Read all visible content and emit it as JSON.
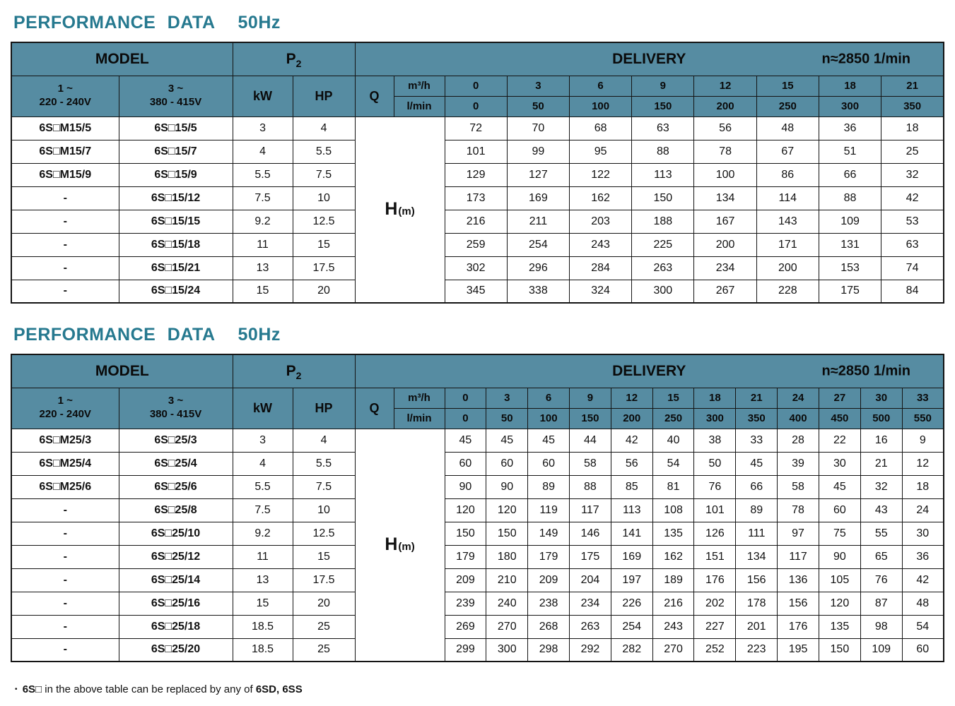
{
  "colors": {
    "title_accent": "#26798f",
    "header_bg": "#568ca2",
    "border": "#141414"
  },
  "tables": [
    {
      "title": "PERFORMANCE DATA",
      "freq": "50Hz",
      "header": {
        "model": "MODEL",
        "p2_base": "P",
        "p2_sub": "2",
        "delivery": "DELIVERY",
        "speed": "n≈2850 1/min",
        "phase1": [
          "1 ~",
          "220 - 240V"
        ],
        "phase3": [
          "3 ~",
          "380 - 415V"
        ],
        "kw": "kW",
        "hp": "HP",
        "q": "Q",
        "unit_m3h": "m³/h",
        "unit_lmin": "l/min",
        "flow_m3h": [
          0,
          3,
          6,
          9,
          12,
          15,
          18,
          21
        ],
        "flow_lmin": [
          0,
          50,
          100,
          150,
          200,
          250,
          300,
          350
        ],
        "head_base": "H",
        "head_unit": "(m)"
      },
      "rows": [
        {
          "model1": "6S□M15/5",
          "model3": "6S□15/5",
          "kw": 3,
          "hp": 4,
          "values": [
            72,
            70,
            68,
            63,
            56,
            48,
            36,
            18
          ]
        },
        {
          "model1": "6S□M15/7",
          "model3": "6S□15/7",
          "kw": 4,
          "hp": 5.5,
          "values": [
            101,
            99,
            95,
            88,
            78,
            67,
            51,
            25
          ]
        },
        {
          "model1": "6S□M15/9",
          "model3": "6S□15/9",
          "kw": 5.5,
          "hp": 7.5,
          "values": [
            129,
            127,
            122,
            113,
            100,
            86,
            66,
            32
          ]
        },
        {
          "model1": "-",
          "model3": "6S□15/12",
          "kw": 7.5,
          "hp": 10,
          "values": [
            173,
            169,
            162,
            150,
            134,
            114,
            88,
            42
          ]
        },
        {
          "model1": "-",
          "model3": "6S□15/15",
          "kw": 9.2,
          "hp": 12.5,
          "values": [
            216,
            211,
            203,
            188,
            167,
            143,
            109,
            53
          ]
        },
        {
          "model1": "-",
          "model3": "6S□15/18",
          "kw": 11,
          "hp": 15,
          "values": [
            259,
            254,
            243,
            225,
            200,
            171,
            131,
            63
          ]
        },
        {
          "model1": "-",
          "model3": "6S□15/21",
          "kw": 13,
          "hp": 17.5,
          "values": [
            302,
            296,
            284,
            263,
            234,
            200,
            153,
            74
          ]
        },
        {
          "model1": "-",
          "model3": "6S□15/24",
          "kw": 15,
          "hp": 20,
          "values": [
            345,
            338,
            324,
            300,
            267,
            228,
            175,
            84
          ]
        }
      ]
    },
    {
      "title": "PERFORMANCE DATA",
      "freq": "50Hz",
      "header": {
        "model": "MODEL",
        "p2_base": "P",
        "p2_sub": "2",
        "delivery": "DELIVERY",
        "speed": "n≈2850 1/min",
        "phase1": [
          "1 ~",
          "220 - 240V"
        ],
        "phase3": [
          "3 ~",
          "380 - 415V"
        ],
        "kw": "kW",
        "hp": "HP",
        "q": "Q",
        "unit_m3h": "m³/h",
        "unit_lmin": "l/min",
        "flow_m3h": [
          0,
          3,
          6,
          9,
          12,
          15,
          18,
          21,
          24,
          27,
          30,
          33
        ],
        "flow_lmin": [
          0,
          50,
          100,
          150,
          200,
          250,
          300,
          350,
          400,
          450,
          500,
          550
        ],
        "head_base": "H",
        "head_unit": "(m)"
      },
      "rows": [
        {
          "model1": "6S□M25/3",
          "model3": "6S□25/3",
          "kw": 3,
          "hp": 4,
          "values": [
            45,
            45,
            45,
            44,
            42,
            40,
            38,
            33,
            28,
            22,
            16,
            9
          ]
        },
        {
          "model1": "6S□M25/4",
          "model3": "6S□25/4",
          "kw": 4,
          "hp": 5.5,
          "values": [
            60,
            60,
            60,
            58,
            56,
            54,
            50,
            45,
            39,
            30,
            21,
            12
          ]
        },
        {
          "model1": "6S□M25/6",
          "model3": "6S□25/6",
          "kw": 5.5,
          "hp": 7.5,
          "values": [
            90,
            90,
            89,
            88,
            85,
            81,
            76,
            66,
            58,
            45,
            32,
            18
          ]
        },
        {
          "model1": "-",
          "model3": "6S□25/8",
          "kw": 7.5,
          "hp": 10,
          "values": [
            120,
            120,
            119,
            117,
            113,
            108,
            101,
            89,
            78,
            60,
            43,
            24
          ]
        },
        {
          "model1": "-",
          "model3": "6S□25/10",
          "kw": 9.2,
          "hp": 12.5,
          "values": [
            150,
            150,
            149,
            146,
            141,
            135,
            126,
            111,
            97,
            75,
            55,
            30
          ]
        },
        {
          "model1": "-",
          "model3": "6S□25/12",
          "kw": 11,
          "hp": 15,
          "values": [
            179,
            180,
            179,
            175,
            169,
            162,
            151,
            134,
            117,
            90,
            65,
            36
          ]
        },
        {
          "model1": "-",
          "model3": "6S□25/14",
          "kw": 13,
          "hp": 17.5,
          "values": [
            209,
            210,
            209,
            204,
            197,
            189,
            176,
            156,
            136,
            105,
            76,
            42
          ]
        },
        {
          "model1": "-",
          "model3": "6S□25/16",
          "kw": 15,
          "hp": 20,
          "values": [
            239,
            240,
            238,
            234,
            226,
            216,
            202,
            178,
            156,
            120,
            87,
            48
          ]
        },
        {
          "model1": "-",
          "model3": "6S□25/18",
          "kw": 18.5,
          "hp": 25,
          "values": [
            269,
            270,
            268,
            263,
            254,
            243,
            227,
            201,
            176,
            135,
            98,
            54
          ]
        },
        {
          "model1": "-",
          "model3": "6S□25/20",
          "kw": 18.5,
          "hp": 25,
          "values": [
            299,
            300,
            298,
            292,
            282,
            270,
            252,
            223,
            195,
            150,
            109,
            60
          ]
        }
      ]
    }
  ],
  "footnote": {
    "bullet": "•",
    "model_code": "6S□",
    "text": "in the above table can be replaced by any of",
    "replacements": "6SD, 6SS"
  }
}
